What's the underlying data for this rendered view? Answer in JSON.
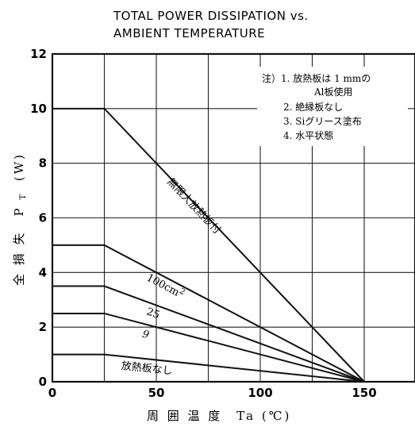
{
  "chart_data": {
    "type": "line",
    "title": [
      "TOTAL POWER DISSIPATION vs.",
      "AMBIENT TEMPERATURE"
    ],
    "xlabel": "周 囲 温 度　Ta (℃)",
    "ylabel": "全 損 失　P",
    "ylabel_sub": "T",
    "ylabel_unit": "(W)",
    "xlim": [
      0,
      175
    ],
    "ylim": [
      0,
      12
    ],
    "xticks": [
      0,
      50,
      100,
      150
    ],
    "xtick_labels": [
      "0",
      "50",
      "100",
      "150"
    ],
    "yticks": [
      0,
      2,
      4,
      6,
      8,
      10,
      12
    ],
    "ytick_labels": [
      "0",
      "2",
      "4",
      "6",
      "8",
      "10",
      "12"
    ],
    "xgrid": [
      25,
      50,
      75,
      100,
      125,
      150
    ],
    "ygrid": [
      2,
      4,
      6,
      8,
      10
    ],
    "grid": true,
    "notes": [
      "注）1. 放熱板は 1 mmの",
      "Al板使用",
      "2. 絶縁板なし",
      "3. Siグリース塗布",
      "4. 水平状態"
    ],
    "series": [
      {
        "name": "無限大放熱板付",
        "x": [
          0,
          25,
          150
        ],
        "y": [
          10,
          10,
          0
        ]
      },
      {
        "name": "100cm²",
        "x": [
          0,
          25,
          150
        ],
        "y": [
          5,
          5,
          0
        ]
      },
      {
        "name": "25",
        "x": [
          0,
          25,
          150
        ],
        "y": [
          3.5,
          3.5,
          0
        ]
      },
      {
        "name": "9",
        "x": [
          0,
          25,
          150
        ],
        "y": [
          2.5,
          2.5,
          0
        ]
      },
      {
        "name": "放熱板なし",
        "x": [
          0,
          25,
          150
        ],
        "y": [
          1,
          1,
          0
        ]
      }
    ],
    "line_color": "#111111"
  }
}
